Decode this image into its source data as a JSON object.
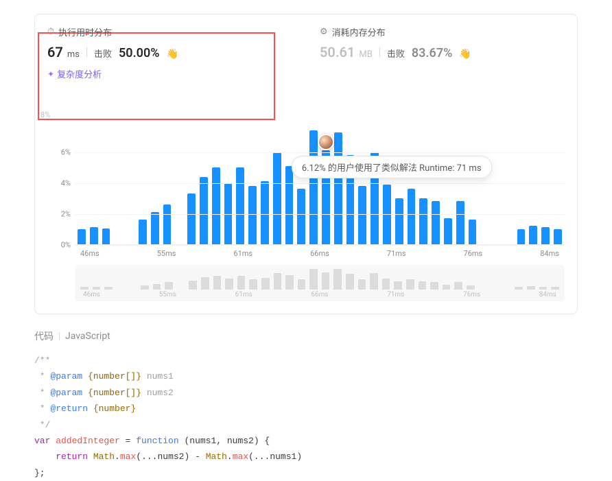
{
  "runtime": {
    "header_icon": "⏱",
    "header": "执行用时分布",
    "value": "67",
    "unit": "ms",
    "beat_label": "击败",
    "beat_pct": "50.00%",
    "emoji": "👋",
    "complexity_link": "复杂度分析"
  },
  "memory": {
    "header_icon": "⚙",
    "header": "消耗内存分布",
    "value": "50.61",
    "unit": "MB",
    "beat_label": "击败",
    "beat_pct": "83.67%",
    "emoji": "👋"
  },
  "pct8_label": "8%",
  "chart": {
    "y_ticks": [
      "0%",
      "2%",
      "4%",
      "6%"
    ],
    "y_max_pct": 8,
    "bars_pct": [
      1.0,
      1.1,
      1.05,
      0.0,
      0.0,
      1.6,
      2.1,
      2.6,
      0.0,
      3.3,
      4.4,
      5.0,
      4.0,
      5.0,
      3.8,
      4.1,
      6.0,
      5.1,
      3.6,
      7.4,
      6.12,
      7.3,
      5.8,
      3.8,
      6.0,
      3.9,
      3.0,
      3.6,
      3.0,
      2.8,
      1.7,
      2.8,
      1.6,
      0.0,
      0.0,
      0.0,
      1.0,
      1.2,
      1.1,
      1.0
    ],
    "x_ticks": [
      "46ms",
      "55ms",
      "61ms",
      "66ms",
      "71ms",
      "76ms",
      "84ms"
    ],
    "bar_color": "#1890ff",
    "grid_color": "#f3f3f3",
    "tooltip": "6.12% 的用户使用了类似解法 Runtime: 71 ms",
    "highlight_index": 20
  },
  "mini_chart": {
    "bars_pct": [
      1.0,
      1.1,
      1.05,
      0,
      0,
      1.6,
      2.1,
      2.6,
      0,
      3.3,
      4.4,
      5.0,
      4.0,
      5.0,
      3.8,
      4.1,
      6.0,
      5.1,
      3.6,
      7.4,
      6.12,
      7.3,
      5.8,
      3.8,
      6.0,
      3.9,
      3.0,
      3.6,
      3.0,
      2.8,
      1.7,
      2.8,
      1.6,
      0,
      0,
      0,
      1.0,
      1.2,
      1.1,
      1.0
    ],
    "x_ticks": [
      "46ms",
      "55ms",
      "61ms",
      "66ms",
      "71ms",
      "76ms",
      "84ms"
    ]
  },
  "code_section": {
    "label": "代码",
    "language": "JavaScript"
  },
  "code": {
    "l1": "/**",
    "l2_pre": " * ",
    "l2_tag": "@param",
    "l2_type": " {number[]}",
    "l2_name": " nums1",
    "l3_tag": "@param",
    "l3_type": " {number[]}",
    "l3_name": " nums2",
    "l4_tag": "@return",
    "l4_type": " {number}",
    "l5": " */",
    "l6_var": "var ",
    "l6_name": "addedInteger",
    "l6_eq": " = ",
    "l6_fn": "function",
    "l6_args": " (nums1, nums2) {",
    "l7_ret": "    return ",
    "l7_obj1": "Math",
    "l7_dot1": ".",
    "l7_max1": "max",
    "l7_a1": "(...nums2) - ",
    "l7_obj2": "Math",
    "l7_dot2": ".",
    "l7_max2": "max",
    "l7_a2": "(...nums1)",
    "l8": "};"
  }
}
